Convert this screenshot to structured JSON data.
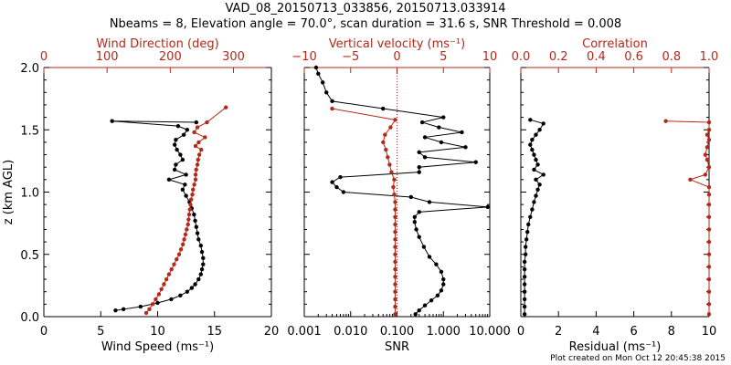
{
  "title_line1": "VAD_08_20150713_033856, 20150713.033914",
  "title_line2": "Nbeams = 8, Elevation angle = 70.0°, scan duration = 31.6 s, SNR Threshold = 0.008",
  "footer": "Plot created on Mon Oct 12 20:45:38 2015",
  "colors": {
    "black": "#000000",
    "red": "#b5281a"
  },
  "chart_data": [
    {
      "type": "line",
      "ylabel": "z (km AGL)",
      "ylim": [
        0,
        2.0
      ],
      "yticks": [
        "0.0",
        "0.5",
        "1.0",
        "1.5",
        "2.0"
      ],
      "bottom_axis": {
        "label": "Wind Speed (ms⁻¹)",
        "lim": [
          0,
          20
        ],
        "ticks": [
          "0",
          "5",
          "10",
          "15",
          "20"
        ]
      },
      "top_axis": {
        "label": "Wind Direction (deg)",
        "lim": [
          0,
          360
        ],
        "ticks": [
          "0",
          "100",
          "200",
          "300"
        ]
      },
      "series": [
        {
          "axis": "bottom",
          "color": "black",
          "points": [
            [
              6.3,
              0.05
            ],
            [
              7.0,
              0.06
            ],
            [
              8.5,
              0.08
            ],
            [
              10.0,
              0.11
            ],
            [
              11.2,
              0.14
            ],
            [
              12.0,
              0.17
            ],
            [
              12.6,
              0.2
            ],
            [
              13.0,
              0.23
            ],
            [
              13.3,
              0.26
            ],
            [
              13.6,
              0.3
            ],
            [
              13.8,
              0.34
            ],
            [
              13.9,
              0.38
            ],
            [
              14.0,
              0.42
            ],
            [
              14.0,
              0.47
            ],
            [
              13.9,
              0.52
            ],
            [
              13.8,
              0.57
            ],
            [
              13.6,
              0.62
            ],
            [
              13.5,
              0.67
            ],
            [
              13.4,
              0.72
            ],
            [
              13.3,
              0.77
            ],
            [
              13.2,
              0.82
            ],
            [
              13.0,
              0.87
            ],
            [
              12.8,
              0.92
            ],
            [
              12.5,
              0.97
            ],
            [
              12.2,
              1.02
            ],
            [
              12.4,
              1.06
            ],
            [
              11.0,
              1.1
            ],
            [
              12.5,
              1.14
            ],
            [
              11.5,
              1.18
            ],
            [
              11.6,
              1.22
            ],
            [
              12.2,
              1.26
            ],
            [
              12.0,
              1.3
            ],
            [
              11.7,
              1.34
            ],
            [
              11.5,
              1.38
            ],
            [
              11.6,
              1.42
            ],
            [
              12.3,
              1.46
            ],
            [
              12.6,
              1.5
            ],
            [
              11.8,
              1.53
            ],
            [
              6.0,
              1.57
            ],
            [
              13.4,
              1.56
            ]
          ]
        },
        {
          "axis": "top",
          "color": "red",
          "points": [
            [
              162,
              0.03
            ],
            [
              167,
              0.06
            ],
            [
              172,
              0.1
            ],
            [
              177,
              0.14
            ],
            [
              182,
              0.18
            ],
            [
              186,
              0.22
            ],
            [
              190,
              0.26
            ],
            [
              194,
              0.3
            ],
            [
              198,
              0.34
            ],
            [
              202,
              0.38
            ],
            [
              206,
              0.42
            ],
            [
              210,
              0.46
            ],
            [
              214,
              0.5
            ],
            [
              217,
              0.54
            ],
            [
              220,
              0.58
            ],
            [
              222,
              0.62
            ],
            [
              224,
              0.66
            ],
            [
              226,
              0.7
            ],
            [
              228,
              0.74
            ],
            [
              229,
              0.78
            ],
            [
              230,
              0.82
            ],
            [
              231,
              0.86
            ],
            [
              232,
              0.9
            ],
            [
              233,
              0.94
            ],
            [
              235,
              0.98
            ],
            [
              236,
              1.02
            ],
            [
              238,
              1.06
            ],
            [
              240,
              1.1
            ],
            [
              240,
              1.14
            ],
            [
              241,
              1.18
            ],
            [
              243,
              1.22
            ],
            [
              244,
              1.26
            ],
            [
              246,
              1.3
            ],
            [
              249,
              1.34
            ],
            [
              240,
              1.37
            ],
            [
              245,
              1.4
            ],
            [
              255,
              1.44
            ],
            [
              238,
              1.48
            ],
            [
              243,
              1.52
            ],
            [
              258,
              1.56
            ],
            [
              288,
              1.68
            ]
          ]
        }
      ]
    },
    {
      "type": "line",
      "ylim": [
        0,
        2.0
      ],
      "bottom_axis": {
        "label": "SNR",
        "scale": "log",
        "lim": [
          0.001,
          10
        ],
        "ticks": [
          "0.001",
          "0.010",
          "0.100",
          "1.000",
          "10.000"
        ]
      },
      "top_axis": {
        "label": "Vertical velocity (ms⁻¹)",
        "lim": [
          -10,
          10
        ],
        "ticks": [
          "−10",
          "−5",
          "0",
          "5",
          "10"
        ],
        "zero_line": "dotted"
      },
      "series": [
        {
          "axis": "bottom",
          "color": "black",
          "points": [
            [
              0.25,
              0.02
            ],
            [
              0.3,
              0.05
            ],
            [
              0.4,
              0.09
            ],
            [
              0.55,
              0.13
            ],
            [
              0.75,
              0.17
            ],
            [
              0.9,
              0.21
            ],
            [
              1.0,
              0.26
            ],
            [
              1.0,
              0.3
            ],
            [
              0.9,
              0.36
            ],
            [
              0.7,
              0.42
            ],
            [
              0.5,
              0.48
            ],
            [
              0.38,
              0.56
            ],
            [
              0.3,
              0.64
            ],
            [
              0.26,
              0.7
            ],
            [
              0.24,
              0.76
            ],
            [
              0.24,
              0.8
            ],
            [
              0.3,
              0.84
            ],
            [
              9.0,
              0.88
            ],
            [
              0.5,
              0.92
            ],
            [
              0.2,
              0.96
            ],
            [
              0.007,
              1.0
            ],
            [
              0.005,
              1.04
            ],
            [
              0.004,
              1.08
            ],
            [
              0.006,
              1.12
            ],
            [
              0.3,
              1.16
            ],
            [
              0.3,
              1.2
            ],
            [
              5.0,
              1.24
            ],
            [
              0.4,
              1.28
            ],
            [
              0.3,
              1.32
            ],
            [
              3.0,
              1.36
            ],
            [
              0.9,
              1.4
            ],
            [
              0.4,
              1.44
            ],
            [
              2.5,
              1.48
            ],
            [
              0.8,
              1.52
            ],
            [
              0.35,
              1.56
            ],
            [
              1.0,
              1.6
            ],
            [
              0.05,
              1.67
            ],
            [
              0.004,
              1.73
            ],
            [
              0.003,
              1.8
            ],
            [
              0.0025,
              1.88
            ],
            [
              0.002,
              1.95
            ],
            [
              0.0018,
              2.0
            ]
          ]
        },
        {
          "axis": "top",
          "color": "red",
          "points": [
            [
              -0.2,
              0.02
            ],
            [
              -0.2,
              0.08
            ],
            [
              -0.2,
              0.14
            ],
            [
              -0.2,
              0.2
            ],
            [
              -0.2,
              0.26
            ],
            [
              -0.2,
              0.32
            ],
            [
              -0.2,
              0.38
            ],
            [
              -0.2,
              0.44
            ],
            [
              -0.2,
              0.5
            ],
            [
              -0.2,
              0.56
            ],
            [
              -0.2,
              0.62
            ],
            [
              -0.2,
              0.68
            ],
            [
              -0.2,
              0.74
            ],
            [
              -0.2,
              0.8
            ],
            [
              -0.2,
              0.86
            ],
            [
              -0.2,
              0.92
            ],
            [
              -0.3,
              0.98
            ],
            [
              -0.4,
              1.04
            ],
            [
              -0.3,
              1.1
            ],
            [
              -0.6,
              1.16
            ],
            [
              -0.8,
              1.22
            ],
            [
              -1.0,
              1.28
            ],
            [
              -1.2,
              1.34
            ],
            [
              -1.5,
              1.4
            ],
            [
              -1.3,
              1.46
            ],
            [
              -0.7,
              1.52
            ],
            [
              -0.2,
              1.58
            ],
            [
              -7.0,
              1.67
            ]
          ]
        }
      ]
    },
    {
      "type": "line",
      "ylim": [
        0,
        2.0
      ],
      "bottom_axis": {
        "label": "Residual (ms⁻¹)",
        "lim": [
          0,
          10
        ],
        "ticks": [
          "0",
          "2",
          "4",
          "6",
          "8",
          "10"
        ]
      },
      "top_axis": {
        "label": "Correlation",
        "lim": [
          0,
          1.0
        ],
        "ticks": [
          "0.0",
          "0.2",
          "0.4",
          "0.6",
          "0.8",
          "1.0"
        ]
      },
      "series": [
        {
          "axis": "bottom",
          "color": "black",
          "points": [
            [
              0.2,
              0.02
            ],
            [
              0.2,
              0.08
            ],
            [
              0.2,
              0.14
            ],
            [
              0.2,
              0.2
            ],
            [
              0.2,
              0.26
            ],
            [
              0.2,
              0.32
            ],
            [
              0.2,
              0.38
            ],
            [
              0.2,
              0.44
            ],
            [
              0.25,
              0.5
            ],
            [
              0.25,
              0.56
            ],
            [
              0.3,
              0.62
            ],
            [
              0.35,
              0.68
            ],
            [
              0.4,
              0.74
            ],
            [
              0.5,
              0.8
            ],
            [
              0.6,
              0.86
            ],
            [
              0.7,
              0.92
            ],
            [
              0.8,
              0.97
            ],
            [
              0.9,
              1.02
            ],
            [
              1.0,
              1.06
            ],
            [
              0.8,
              1.1
            ],
            [
              1.2,
              1.14
            ],
            [
              0.7,
              1.18
            ],
            [
              0.9,
              1.22
            ],
            [
              0.8,
              1.26
            ],
            [
              0.7,
              1.3
            ],
            [
              0.6,
              1.34
            ],
            [
              0.5,
              1.38
            ],
            [
              0.6,
              1.42
            ],
            [
              0.8,
              1.46
            ],
            [
              1.0,
              1.5
            ],
            [
              1.2,
              1.55
            ],
            [
              0.5,
              1.58
            ]
          ]
        },
        {
          "axis": "top",
          "color": "red",
          "points": [
            [
              1.0,
              0.02
            ],
            [
              1.0,
              0.1
            ],
            [
              1.0,
              0.2
            ],
            [
              1.0,
              0.3
            ],
            [
              1.0,
              0.4
            ],
            [
              1.0,
              0.5
            ],
            [
              1.0,
              0.6
            ],
            [
              1.0,
              0.7
            ],
            [
              1.0,
              0.8
            ],
            [
              1.0,
              0.9
            ],
            [
              1.0,
              0.98
            ],
            [
              1.0,
              1.04
            ],
            [
              0.9,
              1.1
            ],
            [
              0.98,
              1.14
            ],
            [
              1.0,
              1.2
            ],
            [
              0.99,
              1.26
            ],
            [
              0.98,
              1.3
            ],
            [
              0.99,
              1.36
            ],
            [
              1.0,
              1.42
            ],
            [
              0.99,
              1.46
            ],
            [
              1.0,
              1.5
            ],
            [
              1.0,
              1.56
            ],
            [
              0.77,
              1.57
            ]
          ]
        }
      ]
    }
  ]
}
